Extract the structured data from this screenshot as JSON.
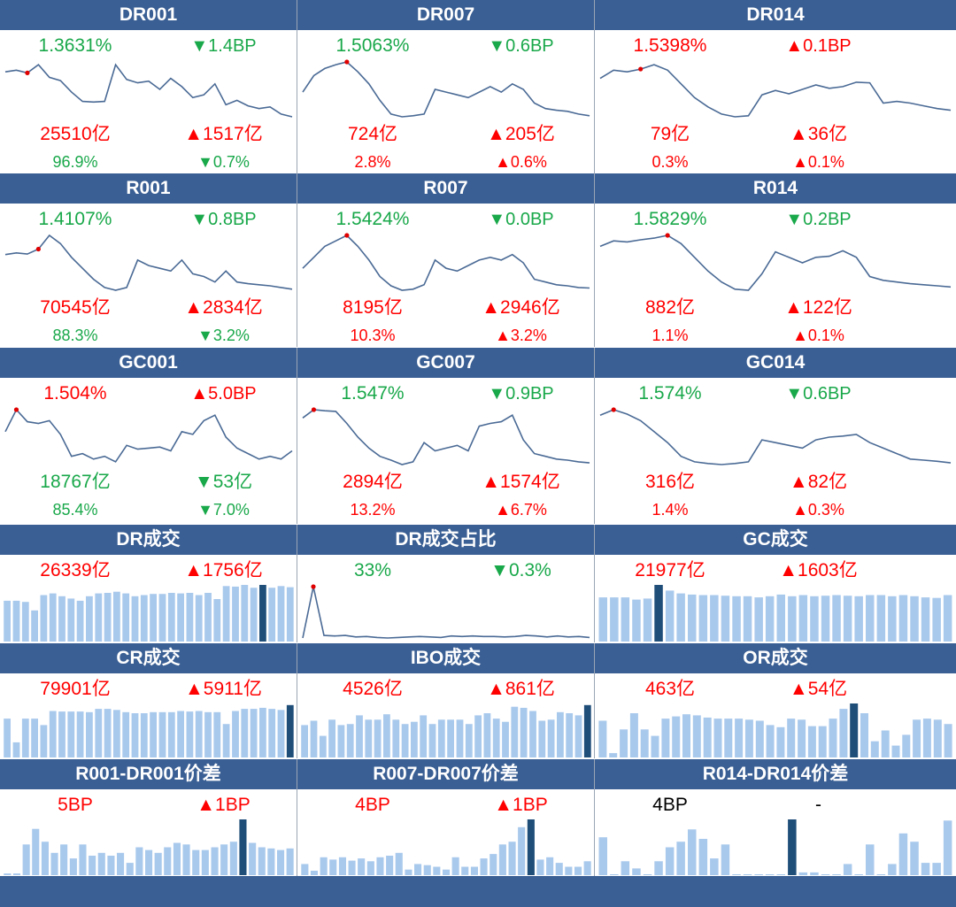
{
  "colors": {
    "header": "#3a5f94",
    "up": "#ff0000",
    "down": "#19a84a",
    "line": "#4a6a95",
    "bar": "#a9c9ec",
    "bar_highlight": "#1f4e79"
  },
  "chart_data": [
    {
      "type": "line",
      "title": "DR001",
      "rate": "1.3631%",
      "rate_color": "green",
      "rate_change": "▼1.4BP",
      "rate_change_color": "green",
      "volume": "25510亿",
      "volume_color": "red",
      "volume_change": "▲1517亿",
      "volume_change_color": "red",
      "share": "96.9%",
      "share_color": "green",
      "share_change": "▼0.7%",
      "share_change_color": "green",
      "marker_index": 2,
      "values": [
        0.82,
        0.85,
        0.8,
        0.95,
        0.72,
        0.66,
        0.45,
        0.28,
        0.27,
        0.28,
        0.95,
        0.68,
        0.62,
        0.65,
        0.5,
        0.7,
        0.55,
        0.35,
        0.4,
        0.6,
        0.22,
        0.3,
        0.2,
        0.15,
        0.18,
        0.05,
        0.0
      ]
    },
    {
      "type": "line",
      "title": "DR007",
      "rate": "1.5063%",
      "rate_color": "green",
      "rate_change": "▼0.6BP",
      "rate_change_color": "green",
      "volume": "724亿",
      "volume_color": "red",
      "volume_change": "▲205亿",
      "volume_change_color": "red",
      "share": "2.8%",
      "share_color": "red",
      "share_change": "▲0.6%",
      "share_change_color": "red",
      "marker_index": 4,
      "values": [
        0.45,
        0.75,
        0.88,
        0.95,
        1.0,
        0.82,
        0.6,
        0.3,
        0.05,
        0.0,
        0.02,
        0.05,
        0.5,
        0.45,
        0.4,
        0.35,
        0.45,
        0.55,
        0.45,
        0.6,
        0.5,
        0.25,
        0.15,
        0.12,
        0.1,
        0.05,
        0.02
      ]
    },
    {
      "type": "line",
      "title": "DR014",
      "rate": "1.5398%",
      "rate_color": "red",
      "rate_change": "▲0.1BP",
      "rate_change_color": "red",
      "volume": "79亿",
      "volume_color": "red",
      "volume_change": "▲36亿",
      "volume_change_color": "red",
      "share": "0.3%",
      "share_color": "red",
      "share_change": "▲0.1%",
      "share_change_color": "red",
      "marker_index": 3,
      "values": [
        0.7,
        0.85,
        0.82,
        0.87,
        0.95,
        0.85,
        0.6,
        0.35,
        0.18,
        0.05,
        0.0,
        0.02,
        0.4,
        0.48,
        0.42,
        0.5,
        0.58,
        0.52,
        0.55,
        0.63,
        0.62,
        0.25,
        0.28,
        0.25,
        0.2,
        0.15,
        0.12
      ]
    },
    {
      "type": "line",
      "title": "R001",
      "rate": "1.4107%",
      "rate_color": "green",
      "rate_change": "▼0.8BP",
      "rate_change_color": "green",
      "volume": "70545亿",
      "volume_color": "red",
      "volume_change": "▲2834亿",
      "volume_change_color": "red",
      "share": "88.3%",
      "share_color": "green",
      "share_change": "▼3.2%",
      "share_change_color": "green",
      "marker_index": 3,
      "values": [
        0.65,
        0.68,
        0.66,
        0.75,
        1.0,
        0.85,
        0.6,
        0.4,
        0.2,
        0.05,
        0.0,
        0.05,
        0.55,
        0.45,
        0.4,
        0.35,
        0.55,
        0.3,
        0.25,
        0.15,
        0.35,
        0.15,
        0.12,
        0.1,
        0.08,
        0.05,
        0.02
      ]
    },
    {
      "type": "line",
      "title": "R007",
      "rate": "1.5424%",
      "rate_color": "green",
      "rate_change": "▼0.0BP",
      "rate_change_color": "green",
      "volume": "8195亿",
      "volume_color": "red",
      "volume_change": "▲2946亿",
      "volume_change_color": "red",
      "share": "10.3%",
      "share_color": "red",
      "share_change": "▲3.2%",
      "share_change_color": "red",
      "marker_index": 4,
      "values": [
        0.4,
        0.6,
        0.8,
        0.9,
        1.0,
        0.8,
        0.55,
        0.25,
        0.08,
        0.0,
        0.02,
        0.1,
        0.55,
        0.4,
        0.35,
        0.45,
        0.55,
        0.6,
        0.55,
        0.65,
        0.5,
        0.2,
        0.15,
        0.1,
        0.08,
        0.05,
        0.04
      ]
    },
    {
      "type": "line",
      "title": "R014",
      "rate": "1.5829%",
      "rate_color": "green",
      "rate_change": "▼0.2BP",
      "rate_change_color": "green",
      "volume": "882亿",
      "volume_color": "red",
      "volume_change": "▲122亿",
      "volume_change_color": "red",
      "share": "1.1%",
      "share_color": "red",
      "share_change": "▲0.1%",
      "share_change_color": "red",
      "marker_index": 5,
      "values": [
        0.8,
        0.9,
        0.88,
        0.92,
        0.95,
        1.0,
        0.85,
        0.6,
        0.35,
        0.15,
        0.02,
        0.0,
        0.3,
        0.7,
        0.6,
        0.5,
        0.6,
        0.62,
        0.72,
        0.6,
        0.25,
        0.18,
        0.15,
        0.12,
        0.1,
        0.08,
        0.06
      ]
    },
    {
      "type": "line",
      "title": "GC001",
      "rate": "1.504%",
      "rate_color": "red",
      "rate_change": "▲5.0BP",
      "rate_change_color": "red",
      "volume": "18767亿",
      "volume_color": "green",
      "volume_change": "▼53亿",
      "volume_change_color": "green",
      "share": "85.4%",
      "share_color": "green",
      "share_change": "▼7.0%",
      "share_change_color": "green",
      "marker_index": 1,
      "values": [
        0.6,
        1.0,
        0.78,
        0.75,
        0.8,
        0.55,
        0.15,
        0.2,
        0.1,
        0.15,
        0.05,
        0.35,
        0.28,
        0.3,
        0.32,
        0.25,
        0.6,
        0.55,
        0.8,
        0.9,
        0.5,
        0.3,
        0.2,
        0.1,
        0.15,
        0.1,
        0.25
      ]
    },
    {
      "type": "line",
      "title": "GC007",
      "rate": "1.547%",
      "rate_color": "green",
      "rate_change": "▼0.9BP",
      "rate_change_color": "green",
      "volume": "2894亿",
      "volume_color": "red",
      "volume_change": "▲1574亿",
      "volume_change_color": "red",
      "share": "13.2%",
      "share_color": "red",
      "share_change": "▲6.7%",
      "share_change_color": "red",
      "marker_index": 1,
      "values": [
        0.85,
        1.0,
        0.98,
        0.97,
        0.75,
        0.5,
        0.3,
        0.15,
        0.08,
        0.0,
        0.05,
        0.4,
        0.25,
        0.3,
        0.35,
        0.25,
        0.7,
        0.75,
        0.78,
        0.9,
        0.45,
        0.2,
        0.15,
        0.1,
        0.08,
        0.05,
        0.03
      ]
    },
    {
      "type": "line",
      "title": "GC014",
      "rate": "1.574%",
      "rate_color": "green",
      "rate_change": "▼0.6BP",
      "rate_change_color": "green",
      "volume": "316亿",
      "volume_color": "red",
      "volume_change": "▲82亿",
      "volume_change_color": "red",
      "share": "1.4%",
      "share_color": "red",
      "share_change": "▲0.3%",
      "share_change_color": "red",
      "marker_index": 1,
      "values": [
        0.9,
        1.0,
        0.92,
        0.8,
        0.6,
        0.4,
        0.15,
        0.05,
        0.02,
        0.0,
        0.02,
        0.05,
        0.45,
        0.4,
        0.35,
        0.3,
        0.45,
        0.5,
        0.52,
        0.55,
        0.4,
        0.3,
        0.2,
        0.1,
        0.08,
        0.06,
        0.03
      ]
    },
    {
      "type": "bar",
      "title": "DR成交",
      "value": "26339亿",
      "value_color": "red",
      "change": "▲1756亿",
      "change_color": "red",
      "highlight_index": 28,
      "values": [
        0.72,
        0.72,
        0.7,
        0.55,
        0.82,
        0.85,
        0.8,
        0.76,
        0.72,
        0.8,
        0.85,
        0.86,
        0.88,
        0.85,
        0.8,
        0.82,
        0.84,
        0.84,
        0.86,
        0.85,
        0.86,
        0.82,
        0.86,
        0.75,
        0.98,
        0.97,
        1.0,
        0.95,
        1.0,
        0.95,
        0.98,
        0.96
      ]
    },
    {
      "type": "line",
      "title": "DR成交占比",
      "value": "33%",
      "value_color": "green",
      "change": "▼0.3%",
      "change_color": "green",
      "marker_index": 1,
      "values": [
        0.0,
        1.0,
        0.05,
        0.04,
        0.05,
        0.02,
        0.03,
        0.01,
        0.0,
        0.01,
        0.02,
        0.03,
        0.02,
        0.01,
        0.04,
        0.03,
        0.04,
        0.03,
        0.03,
        0.02,
        0.03,
        0.05,
        0.04,
        0.02,
        0.04,
        0.02,
        0.03,
        0.01
      ]
    },
    {
      "type": "bar",
      "title": "GC成交",
      "value": "21977亿",
      "value_color": "red",
      "change": "▲1603亿",
      "change_color": "red",
      "highlight_index": 5,
      "values": [
        0.78,
        0.78,
        0.78,
        0.74,
        0.76,
        1.0,
        0.9,
        0.85,
        0.83,
        0.82,
        0.82,
        0.81,
        0.8,
        0.8,
        0.78,
        0.8,
        0.83,
        0.8,
        0.82,
        0.8,
        0.81,
        0.82,
        0.81,
        0.8,
        0.82,
        0.82,
        0.8,
        0.82,
        0.8,
        0.78,
        0.77,
        0.82
      ]
    },
    {
      "type": "bar",
      "title": "CR成交",
      "value": "79901亿",
      "value_color": "red",
      "change": "▲5911亿",
      "change_color": "red",
      "highlight_index": 31,
      "values": [
        0.72,
        0.28,
        0.72,
        0.72,
        0.6,
        0.86,
        0.85,
        0.85,
        0.85,
        0.84,
        0.9,
        0.9,
        0.88,
        0.84,
        0.82,
        0.82,
        0.84,
        0.84,
        0.84,
        0.86,
        0.85,
        0.86,
        0.84,
        0.84,
        0.62,
        0.86,
        0.9,
        0.9,
        0.92,
        0.9,
        0.88,
        0.97
      ]
    },
    {
      "type": "bar",
      "title": "IBO成交",
      "value": "4526亿",
      "value_color": "red",
      "change": "▲861亿",
      "change_color": "red",
      "highlight_index": 31,
      "values": [
        0.6,
        0.68,
        0.4,
        0.7,
        0.6,
        0.62,
        0.78,
        0.7,
        0.7,
        0.8,
        0.7,
        0.62,
        0.66,
        0.78,
        0.62,
        0.7,
        0.7,
        0.7,
        0.62,
        0.78,
        0.82,
        0.72,
        0.66,
        0.94,
        0.92,
        0.86,
        0.68,
        0.7,
        0.84,
        0.82,
        0.78,
        0.97
      ]
    },
    {
      "type": "bar",
      "title": "OR成交",
      "value": "463亿",
      "value_color": "red",
      "change": "▲54亿",
      "change_color": "red",
      "highlight_index": 24,
      "values": [
        0.68,
        0.08,
        0.52,
        0.82,
        0.52,
        0.4,
        0.72,
        0.76,
        0.8,
        0.78,
        0.74,
        0.72,
        0.72,
        0.72,
        0.7,
        0.68,
        0.6,
        0.56,
        0.72,
        0.7,
        0.58,
        0.58,
        0.72,
        0.9,
        1.0,
        0.82,
        0.3,
        0.5,
        0.22,
        0.42,
        0.7,
        0.72,
        0.7,
        0.62
      ]
    },
    {
      "type": "bar",
      "title": "R001-DR001价差",
      "value": "5BP",
      "value_color": "red",
      "change": "▲1BP",
      "change_color": "red",
      "highlight_index": 25,
      "values": [
        0.03,
        0.03,
        0.55,
        0.83,
        0.6,
        0.4,
        0.55,
        0.3,
        0.55,
        0.35,
        0.4,
        0.35,
        0.4,
        0.22,
        0.5,
        0.45,
        0.4,
        0.5,
        0.58,
        0.55,
        0.45,
        0.45,
        0.5,
        0.55,
        0.6,
        1.0,
        0.58,
        0.5,
        0.48,
        0.45,
        0.48
      ]
    },
    {
      "type": "bar",
      "title": "R007-DR007价差",
      "value": "4BP",
      "value_color": "red",
      "change": "▲1BP",
      "change_color": "red",
      "highlight_index": 24,
      "values": [
        0.2,
        0.08,
        0.32,
        0.28,
        0.32,
        0.26,
        0.3,
        0.25,
        0.32,
        0.35,
        0.4,
        0.1,
        0.2,
        0.18,
        0.15,
        0.1,
        0.32,
        0.15,
        0.15,
        0.3,
        0.38,
        0.55,
        0.6,
        0.86,
        1.0,
        0.28,
        0.32,
        0.22,
        0.15,
        0.15,
        0.25
      ]
    },
    {
      "type": "bar",
      "title": "R014-DR014价差",
      "value": "4BP",
      "value_color": "black",
      "change": "-",
      "change_color": "black",
      "highlight_index": 17,
      "values": [
        0.68,
        0.0,
        0.25,
        0.12,
        0.0,
        0.25,
        0.5,
        0.6,
        0.82,
        0.65,
        0.3,
        0.55,
        0.0,
        0.0,
        0.0,
        0.0,
        0.0,
        1.0,
        0.05,
        0.05,
        0.0,
        0.0,
        0.2,
        0.0,
        0.55,
        0.0,
        0.2,
        0.75,
        0.6,
        0.22,
        0.22,
        0.98
      ]
    }
  ]
}
